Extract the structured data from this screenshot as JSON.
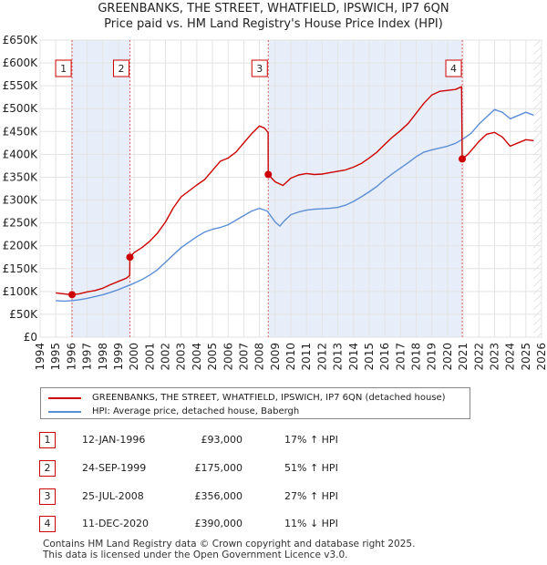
{
  "title": "GREENBANKS, THE STREET, WHATFIELD, IPSWICH, IP7 6QN",
  "subtitle": "Price paid vs. HM Land Registry's House Price Index (HPI)",
  "chart_data": {
    "type": "line",
    "xlim": [
      1994,
      2026
    ],
    "ylim": [
      0,
      650000
    ],
    "x_ticks": [
      1994,
      1995,
      1996,
      1997,
      1998,
      1999,
      2000,
      2001,
      2002,
      2003,
      2004,
      2005,
      2006,
      2007,
      2008,
      2009,
      2010,
      2011,
      2012,
      2013,
      2014,
      2015,
      2016,
      2017,
      2018,
      2019,
      2020,
      2021,
      2022,
      2023,
      2024,
      2025,
      2026
    ],
    "y_ticks": [
      {
        "value": 0,
        "label": "£0"
      },
      {
        "value": 50000,
        "label": "£50K"
      },
      {
        "value": 100000,
        "label": "£100K"
      },
      {
        "value": 150000,
        "label": "£150K"
      },
      {
        "value": 200000,
        "label": "£200K"
      },
      {
        "value": 250000,
        "label": "£250K"
      },
      {
        "value": 300000,
        "label": "£300K"
      },
      {
        "value": 350000,
        "label": "£350K"
      },
      {
        "value": 400000,
        "label": "£400K"
      },
      {
        "value": 450000,
        "label": "£450K"
      },
      {
        "value": 500000,
        "label": "£500K"
      },
      {
        "value": 550000,
        "label": "£550K"
      },
      {
        "value": 600000,
        "label": "£600K"
      },
      {
        "value": 650000,
        "label": "£650K"
      }
    ],
    "data_range": [
      1995.0,
      2025.5
    ],
    "future_hatch_from": 2025.5,
    "series": [
      {
        "name": "GREENBANKS, THE STREET, WHATFIELD, IPSWICH, IP7 6QN (detached house)",
        "color": "#cc0000",
        "points": [
          [
            1995.0,
            97000
          ],
          [
            1995.5,
            95000
          ],
          [
            1996.04,
            93000
          ],
          [
            1996.5,
            95000
          ],
          [
            1997.0,
            99000
          ],
          [
            1997.5,
            102000
          ],
          [
            1998.0,
            107000
          ],
          [
            1998.5,
            115000
          ],
          [
            1999.0,
            122000
          ],
          [
            1999.5,
            129000
          ],
          [
            1999.72,
            135000
          ],
          [
            1999.73,
            175000
          ],
          [
            2000.0,
            185000
          ],
          [
            2000.5,
            196000
          ],
          [
            2001.0,
            210000
          ],
          [
            2001.5,
            228000
          ],
          [
            2002.0,
            252000
          ],
          [
            2002.5,
            283000
          ],
          [
            2003.0,
            307000
          ],
          [
            2003.5,
            320000
          ],
          [
            2004.0,
            333000
          ],
          [
            2004.5,
            345000
          ],
          [
            2005.0,
            365000
          ],
          [
            2005.5,
            385000
          ],
          [
            2006.0,
            392000
          ],
          [
            2006.5,
            405000
          ],
          [
            2007.0,
            425000
          ],
          [
            2007.5,
            445000
          ],
          [
            2008.0,
            462000
          ],
          [
            2008.3,
            458000
          ],
          [
            2008.55,
            448000
          ],
          [
            2008.56,
            356000
          ],
          [
            2009.0,
            340000
          ],
          [
            2009.5,
            332000
          ],
          [
            2010.0,
            348000
          ],
          [
            2010.5,
            355000
          ],
          [
            2011.0,
            358000
          ],
          [
            2011.5,
            356000
          ],
          [
            2012.0,
            357000
          ],
          [
            2012.5,
            360000
          ],
          [
            2013.0,
            363000
          ],
          [
            2013.5,
            366000
          ],
          [
            2014.0,
            372000
          ],
          [
            2014.5,
            380000
          ],
          [
            2015.0,
            392000
          ],
          [
            2015.5,
            405000
          ],
          [
            2016.0,
            422000
          ],
          [
            2016.5,
            438000
          ],
          [
            2017.0,
            452000
          ],
          [
            2017.5,
            468000
          ],
          [
            2018.0,
            490000
          ],
          [
            2018.5,
            512000
          ],
          [
            2019.0,
            530000
          ],
          [
            2019.5,
            538000
          ],
          [
            2020.0,
            540000
          ],
          [
            2020.5,
            542000
          ],
          [
            2020.9,
            548000
          ],
          [
            2020.94,
            390000
          ],
          [
            2021.3,
            400000
          ],
          [
            2021.6,
            412000
          ],
          [
            2022.0,
            428000
          ],
          [
            2022.5,
            444000
          ],
          [
            2023.0,
            448000
          ],
          [
            2023.5,
            438000
          ],
          [
            2024.0,
            418000
          ],
          [
            2024.5,
            425000
          ],
          [
            2025.0,
            432000
          ],
          [
            2025.5,
            430000
          ]
        ]
      },
      {
        "name": "HPI: Average price, detached house, Babergh",
        "color": "#5b8ed6",
        "points": [
          [
            1995.0,
            80000
          ],
          [
            1995.5,
            79000
          ],
          [
            1996.0,
            80000
          ],
          [
            1996.5,
            82000
          ],
          [
            1997.0,
            85000
          ],
          [
            1997.5,
            89000
          ],
          [
            1998.0,
            93000
          ],
          [
            1998.5,
            98000
          ],
          [
            1999.0,
            104000
          ],
          [
            1999.5,
            111000
          ],
          [
            2000.0,
            118000
          ],
          [
            2000.5,
            126000
          ],
          [
            2001.0,
            136000
          ],
          [
            2001.5,
            148000
          ],
          [
            2002.0,
            164000
          ],
          [
            2002.5,
            180000
          ],
          [
            2003.0,
            196000
          ],
          [
            2003.5,
            208000
          ],
          [
            2004.0,
            220000
          ],
          [
            2004.5,
            230000
          ],
          [
            2005.0,
            236000
          ],
          [
            2005.5,
            240000
          ],
          [
            2006.0,
            246000
          ],
          [
            2006.5,
            256000
          ],
          [
            2007.0,
            266000
          ],
          [
            2007.5,
            276000
          ],
          [
            2008.0,
            282000
          ],
          [
            2008.5,
            276000
          ],
          [
            2009.0,
            252000
          ],
          [
            2009.3,
            243000
          ],
          [
            2009.6,
            255000
          ],
          [
            2010.0,
            268000
          ],
          [
            2010.5,
            274000
          ],
          [
            2011.0,
            278000
          ],
          [
            2011.5,
            280000
          ],
          [
            2012.0,
            281000
          ],
          [
            2012.5,
            282000
          ],
          [
            2013.0,
            284000
          ],
          [
            2013.5,
            289000
          ],
          [
            2014.0,
            297000
          ],
          [
            2014.5,
            307000
          ],
          [
            2015.0,
            318000
          ],
          [
            2015.5,
            330000
          ],
          [
            2016.0,
            345000
          ],
          [
            2016.5,
            358000
          ],
          [
            2017.0,
            370000
          ],
          [
            2017.5,
            382000
          ],
          [
            2018.0,
            395000
          ],
          [
            2018.5,
            405000
          ],
          [
            2019.0,
            410000
          ],
          [
            2019.5,
            414000
          ],
          [
            2020.0,
            418000
          ],
          [
            2020.5,
            424000
          ],
          [
            2021.0,
            434000
          ],
          [
            2021.5,
            446000
          ],
          [
            2022.0,
            466000
          ],
          [
            2022.5,
            482000
          ],
          [
            2023.0,
            498000
          ],
          [
            2023.5,
            492000
          ],
          [
            2024.0,
            478000
          ],
          [
            2024.5,
            485000
          ],
          [
            2025.0,
            492000
          ],
          [
            2025.5,
            486000
          ]
        ]
      }
    ],
    "sales": [
      {
        "num": "1",
        "x": 1996.04,
        "price": 93000
      },
      {
        "num": "2",
        "x": 1999.73,
        "price": 175000
      },
      {
        "num": "3",
        "x": 2008.56,
        "price": 356000
      },
      {
        "num": "4",
        "x": 2020.94,
        "price": 390000
      }
    ]
  },
  "legend": {
    "property_label": "GREENBANKS, THE STREET, WHATFIELD, IPSWICH, IP7 6QN (detached house)",
    "hpi_label": "HPI: Average price, detached house, Babergh",
    "property_color": "#cc0000",
    "hpi_color": "#5b8ed6"
  },
  "sales_table": [
    {
      "num": "1",
      "date": "12-JAN-1996",
      "price": "£93,000",
      "hpi": "17% ↑ HPI"
    },
    {
      "num": "2",
      "date": "24-SEP-1999",
      "price": "£175,000",
      "hpi": "51% ↑ HPI"
    },
    {
      "num": "3",
      "date": "25-JUL-2008",
      "price": "£356,000",
      "hpi": "27% ↑ HPI"
    },
    {
      "num": "4",
      "date": "11-DEC-2020",
      "price": "£390,000",
      "hpi": "11% ↓ HPI"
    }
  ],
  "footer": {
    "line1": "Contains HM Land Registry data © Crown copyright and database right 2025.",
    "line2": "This data is licensed under the Open Government Licence v3.0."
  }
}
